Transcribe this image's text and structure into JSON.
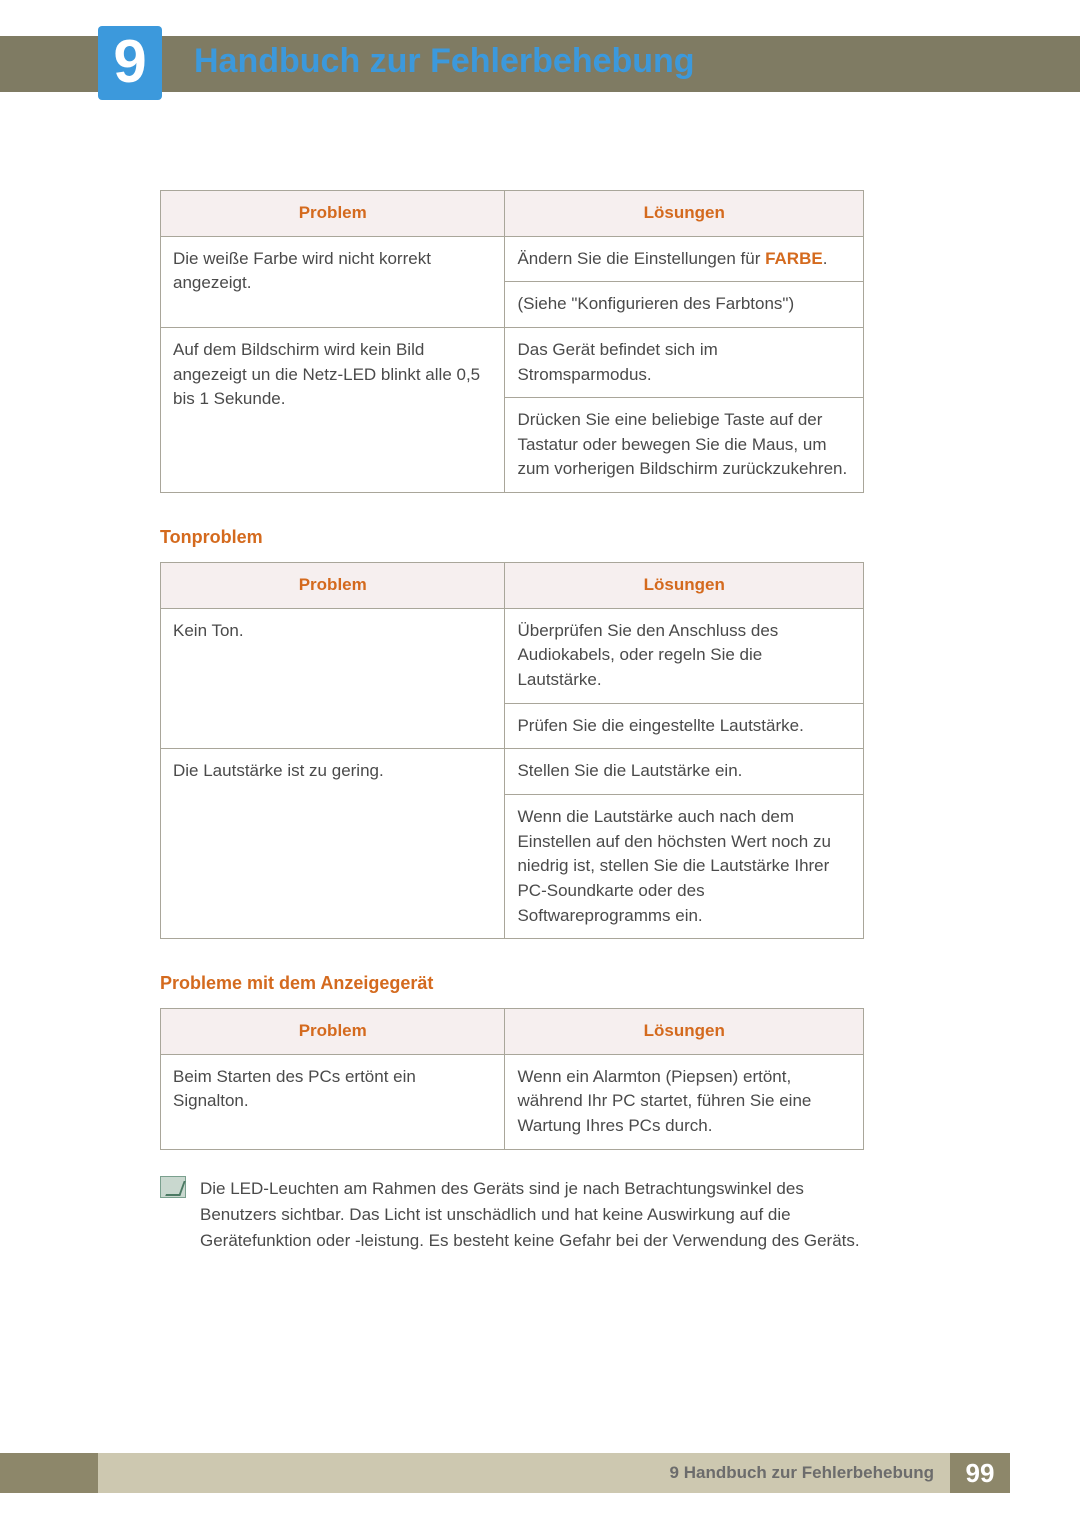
{
  "chapter": {
    "number": "9",
    "title": "Handbuch zur Fehlerbehebung"
  },
  "colors": {
    "accent_blue": "#3c99dc",
    "accent_orange": "#d46a1e",
    "band": "#7f7b63",
    "header_bg": "#f6efef",
    "border": "#a9a69a",
    "footer_bar": "#cdc8b0",
    "footer_dark": "#8d876a",
    "text": "#4a4a4a"
  },
  "tables_common": {
    "header_problem": "Problem",
    "header_solution": "Lösungen",
    "header_bg": "#f6efef",
    "header_color": "#d46a1e",
    "border_color": "#a9a69a",
    "fontsize": 17
  },
  "table1": {
    "row1": {
      "problem": "Die weiße Farbe wird nicht korrekt angezeigt.",
      "solution_a_pre": "Ändern Sie die Einstellungen für ",
      "solution_a_bold": "FARBE",
      "solution_a_post": ".",
      "solution_b": "(Siehe \"Konfigurieren des Farbtons\")"
    },
    "row2": {
      "problem": "Auf dem Bildschirm wird kein Bild angezeigt un die Netz-LED blinkt alle 0,5 bis 1 Sekunde.",
      "solution_a": "Das Gerät befindet sich im Stromsparmodus.",
      "solution_b": "Drücken Sie eine beliebige Taste auf der Tastatur oder bewegen Sie die Maus, um zum vorherigen Bildschirm zurückzukehren."
    }
  },
  "section2_heading": "Tonproblem",
  "table2": {
    "row1": {
      "problem": "Kein Ton.",
      "solution_a": "Überprüfen Sie den Anschluss des Audiokabels, oder regeln Sie die Lautstärke.",
      "solution_b": "Prüfen Sie die eingestellte Lautstärke."
    },
    "row2": {
      "problem": "Die Lautstärke ist zu gering.",
      "solution_a": "Stellen Sie die Lautstärke ein.",
      "solution_b": "Wenn die Lautstärke auch nach dem Einstellen auf den höchsten Wert noch zu niedrig ist, stellen Sie die Lautstärke Ihrer PC-Soundkarte oder des Softwareprogramms ein."
    }
  },
  "section3_heading": "Probleme mit dem Anzeigegerät",
  "table3": {
    "row1": {
      "problem": "Beim Starten des PCs ertönt ein Signalton.",
      "solution": "Wenn ein Alarmton (Piepsen) ertönt, während Ihr PC startet, führen Sie eine Wartung Ihres PCs durch."
    }
  },
  "note": "Die LED-Leuchten am Rahmen des Geräts sind je nach Betrachtungswinkel des Benutzers sichtbar. Das Licht ist unschädlich und hat keine Auswirkung auf die Gerätefunktion oder -leistung. Es besteht keine Gefahr bei der Verwendung des Geräts.",
  "footer": {
    "breadcrumb": "9 Handbuch zur Fehlerbehebung",
    "page": "99"
  }
}
